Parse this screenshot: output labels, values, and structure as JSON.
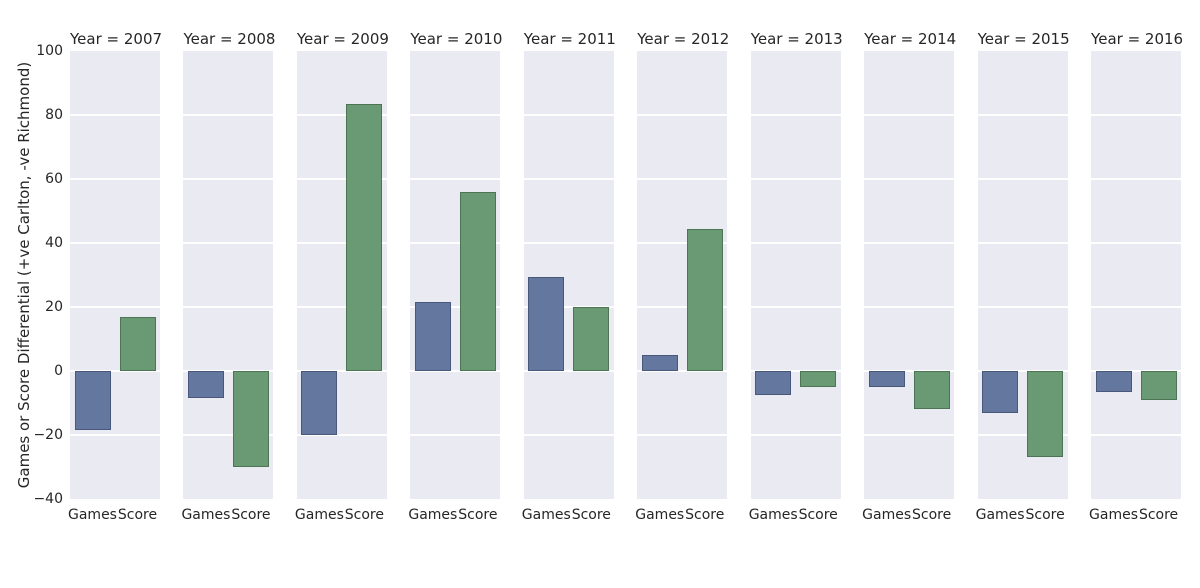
{
  "chart_data": {
    "type": "bar",
    "facet_by": "Year",
    "facet_titles": [
      "Year = 2007",
      "Year = 2008",
      "Year = 2009",
      "Year = 2010",
      "Year = 2011",
      "Year = 2012",
      "Year = 2013",
      "Year = 2014",
      "Year = 2015",
      "Year = 2016"
    ],
    "years": [
      2007,
      2008,
      2009,
      2010,
      2011,
      2012,
      2013,
      2014,
      2015,
      2016
    ],
    "categories": [
      "Games",
      "Score"
    ],
    "series": [
      {
        "name": "Games",
        "values": [
          -18.5,
          -8.5,
          -20,
          21.5,
          29.5,
          5,
          -7.5,
          -5,
          -13,
          -6.5
        ]
      },
      {
        "name": "Score",
        "values": [
          17,
          -30,
          83.5,
          56,
          20,
          44.5,
          -5,
          -12,
          -27,
          -9
        ]
      }
    ],
    "ylabel": "Games or Score Differential (+ve Carlton, -ve Richmond)",
    "ylim": [
      -40,
      100
    ],
    "yticks": [
      100,
      80,
      60,
      40,
      20,
      0,
      -20,
      -40
    ],
    "ytick_labels": [
      "100",
      "80",
      "60",
      "40",
      "20",
      "0",
      "−20",
      "−40"
    ],
    "grid": "on",
    "legend": "none",
    "colors": {
      "games_bar": "#64779E",
      "games_edge": "#49587a",
      "score_bar": "#6A9A73",
      "score_edge": "#4e7456",
      "panel_background": "#EAEAF2",
      "gridline": "#ffffff",
      "text": "#262626",
      "figure_background": "#ffffff"
    }
  }
}
